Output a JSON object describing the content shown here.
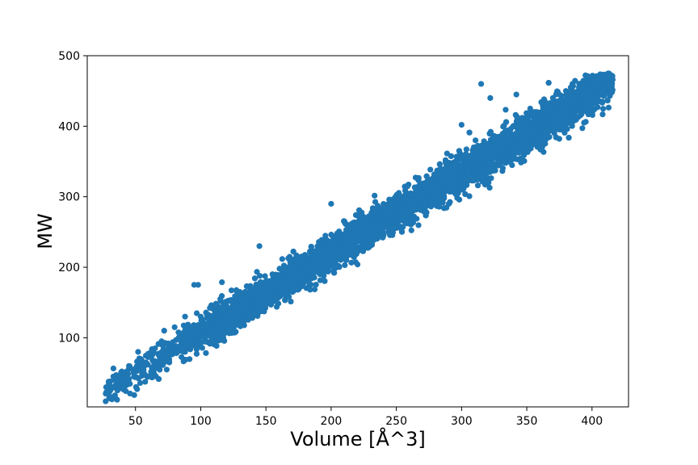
{
  "chart_data": {
    "type": "scatter",
    "title": "",
    "xlabel": "Volume [Å^3]",
    "ylabel": "MW",
    "xlim": [
      13,
      428
    ],
    "ylim": [
      2,
      500
    ],
    "xticks": [
      50,
      100,
      150,
      200,
      250,
      300,
      350,
      400
    ],
    "yticks": [
      100,
      200,
      300,
      400,
      500
    ],
    "grid": false,
    "legend": "none",
    "point_color": "#1f77b4",
    "trend": {
      "slope": 1.132,
      "intercept": -6.2
    },
    "band_halfwidth": {
      "low_volume": 12,
      "high_volume": 14
    },
    "x_range": [
      27,
      416
    ],
    "series": [
      {
        "name": "",
        "x": [
          27.5,
          29,
          30.5,
          31,
          33,
          35,
          37,
          40,
          45,
          48,
          52,
          55,
          58,
          60,
          62,
          65,
          68,
          70,
          72,
          75,
          78,
          80,
          85,
          88,
          90,
          95,
          98,
          100,
          105,
          110,
          115,
          118,
          120,
          125,
          130,
          135,
          140,
          145,
          150,
          155,
          160,
          165,
          170,
          175,
          180,
          185,
          190,
          195,
          200,
          205,
          210,
          215,
          220,
          225,
          230,
          235,
          240,
          245,
          250,
          255,
          260,
          265,
          270,
          275,
          280,
          285,
          290,
          295,
          300,
          305,
          310,
          315,
          320,
          325,
          330,
          335,
          340,
          345,
          350,
          355,
          360,
          365,
          370,
          375,
          380,
          385,
          390,
          395,
          400,
          405,
          410,
          415,
          98,
          145,
          175,
          200,
          230,
          315,
          322,
          342,
          360,
          300,
          255
        ],
        "y": [
          30,
          28,
          25,
          31,
          45,
          40,
          38,
          36,
          60,
          55,
          80,
          50,
          65,
          75,
          52,
          85,
          58,
          95,
          110,
          92,
          80,
          115,
          95,
          130,
          90,
          175,
          110,
          130,
          120,
          140,
          155,
          132,
          135,
          148,
          165,
          150,
          170,
          155,
          180,
          190,
          175,
          200,
          188,
          205,
          210,
          215,
          200,
          225,
          235,
          240,
          228,
          250,
          255,
          262,
          270,
          272,
          260,
          285,
          290,
          300,
          295,
          310,
          305,
          320,
          330,
          325,
          340,
          345,
          335,
          355,
          360,
          365,
          375,
          385,
          380,
          390,
          400,
          395,
          410,
          420,
          415,
          430,
          440,
          445,
          450,
          460,
          455,
          465,
          462,
          458,
          455,
          450,
          175,
          230,
          190,
          290,
          270,
          460,
          440,
          445,
          415,
          402,
          257
        ]
      }
    ]
  }
}
